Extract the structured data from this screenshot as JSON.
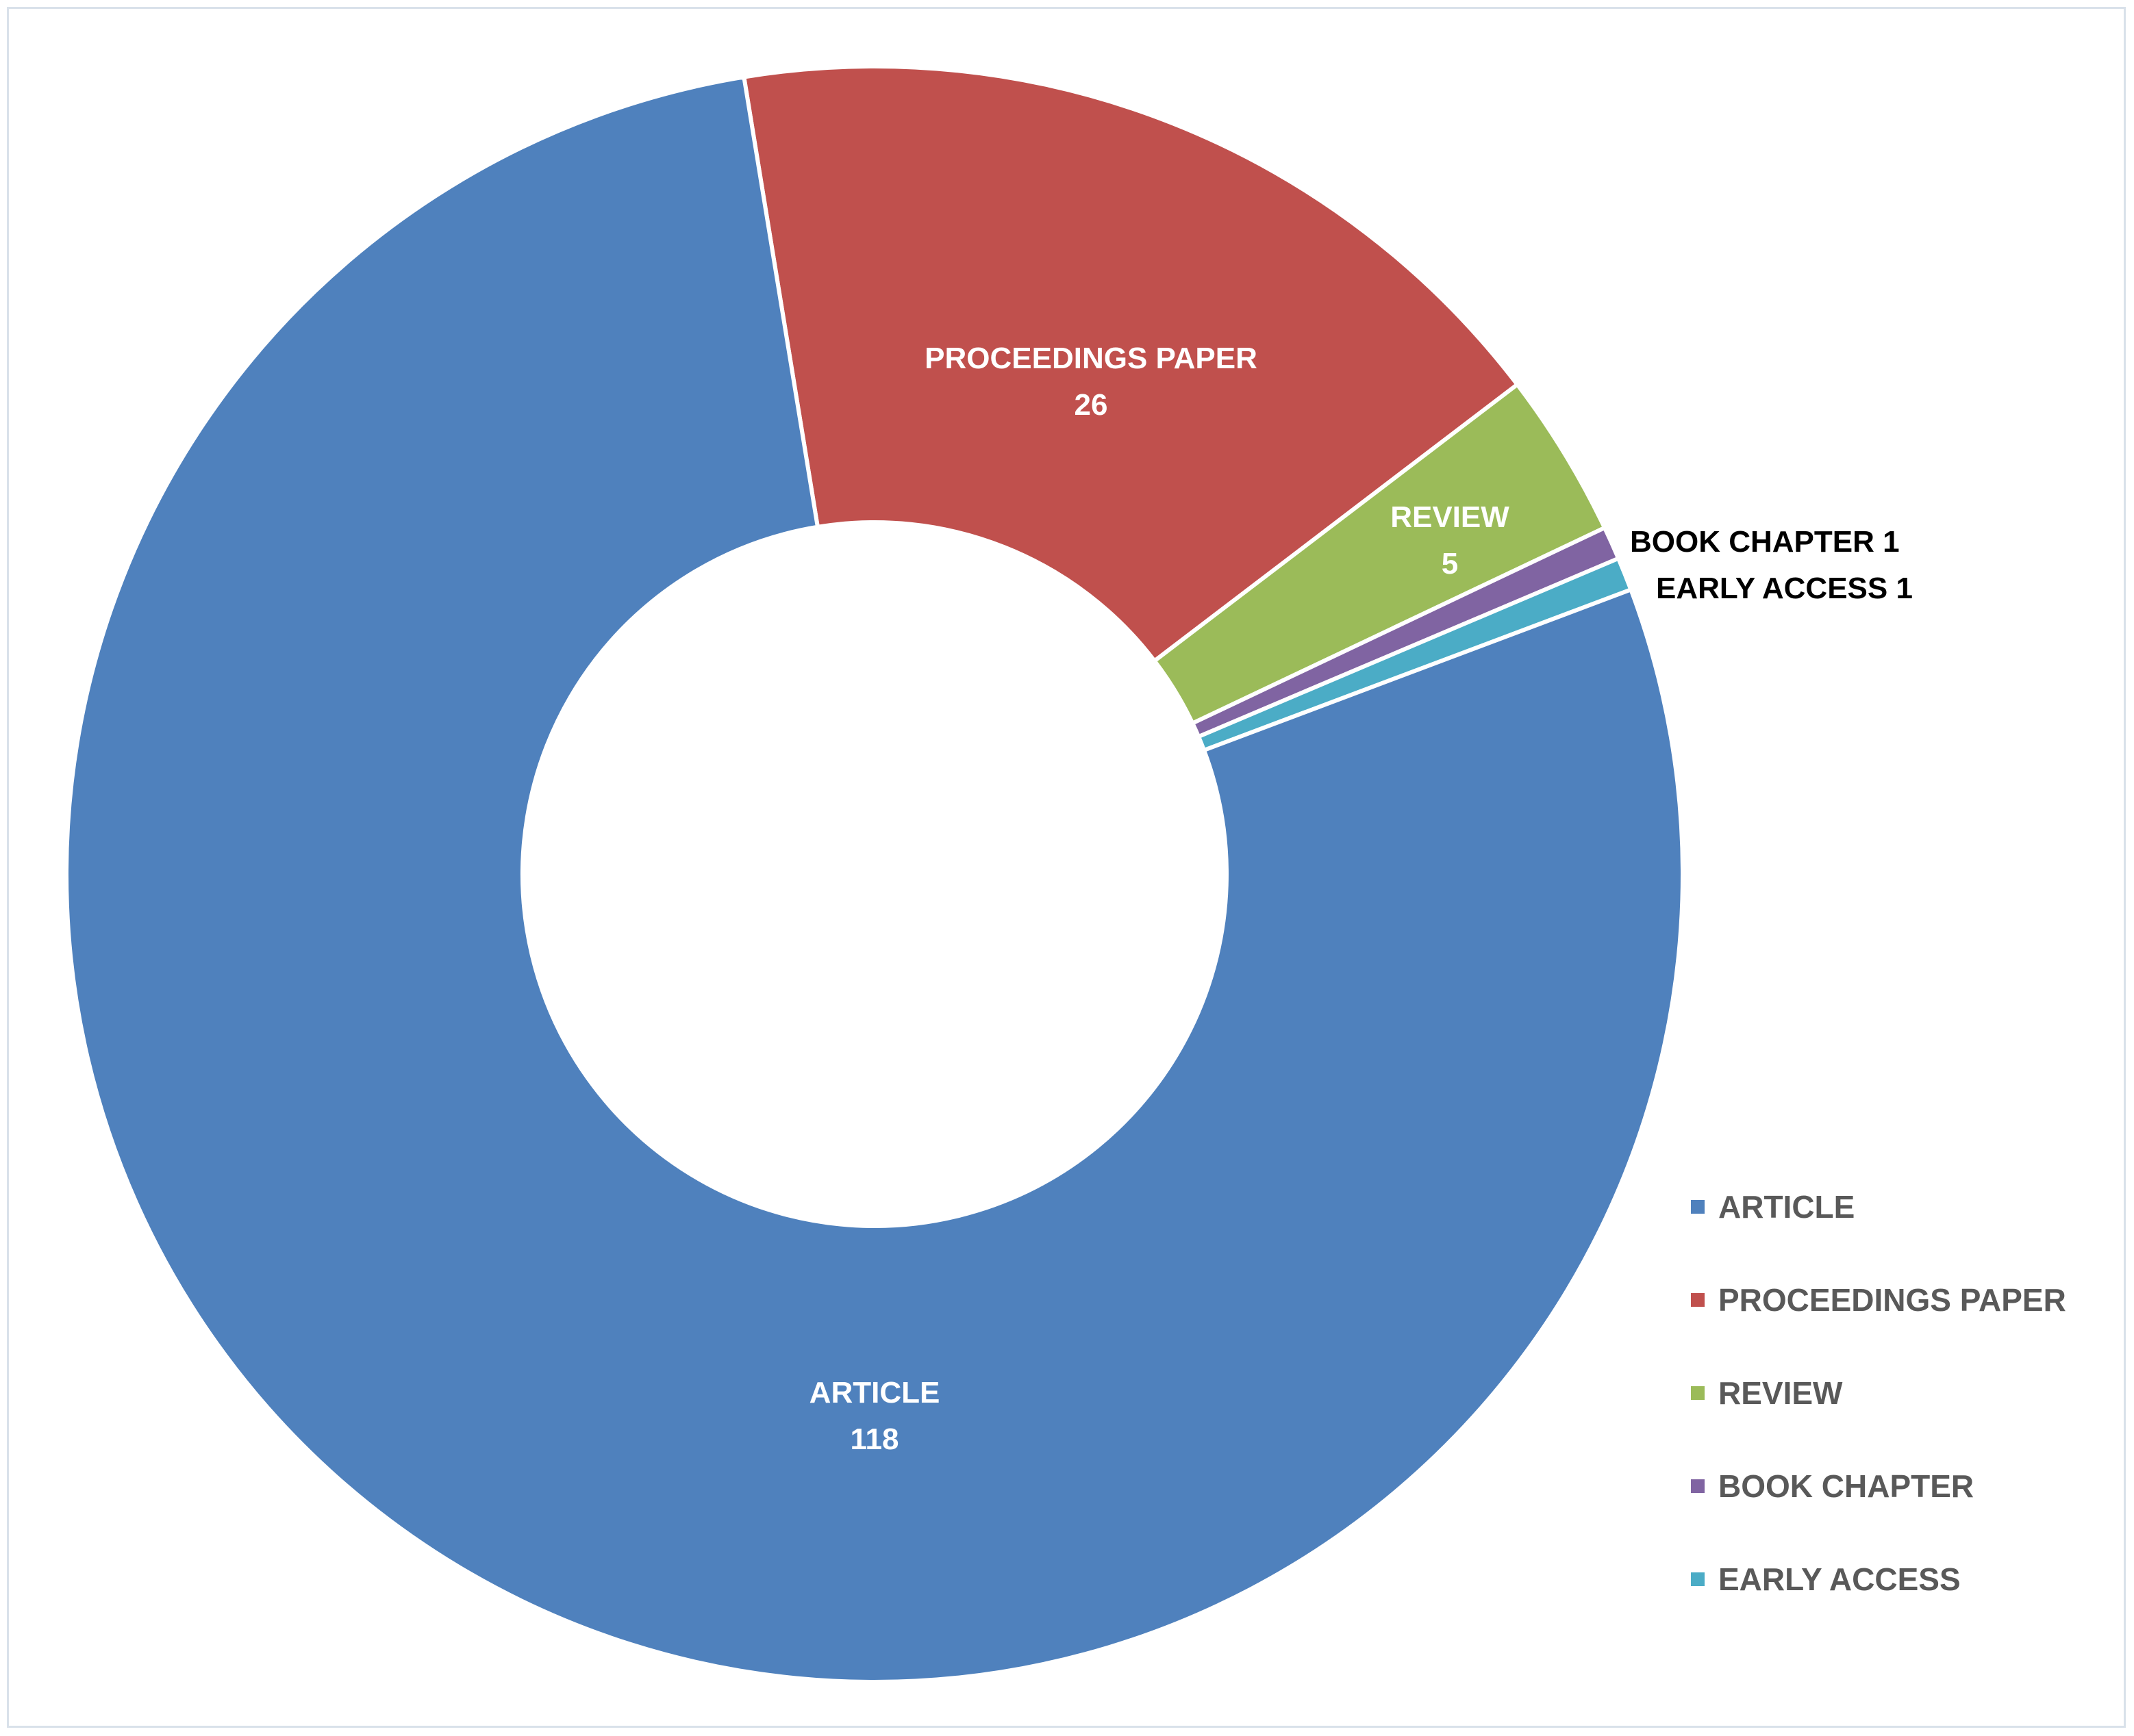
{
  "chart_data": {
    "type": "pie",
    "variant": "donut",
    "categories": [
      "ARTICLE",
      "PROCEEDINGS PAPER",
      "REVIEW",
      "BOOK CHAPTER",
      "EARLY ACCESS"
    ],
    "values": [
      118,
      26,
      5,
      1,
      1
    ],
    "colors": [
      "#4f81bd",
      "#c0504d",
      "#9bbb59",
      "#8064a2",
      "#4bacc6"
    ],
    "data_labels": [
      {
        "category": "ARTICLE",
        "value": "118",
        "inside": true
      },
      {
        "category": "PROCEEDINGS PAPER",
        "value": "26",
        "inside": true
      },
      {
        "category": "REVIEW",
        "value": "5",
        "inside": true
      },
      {
        "category": "BOOK CHAPTER",
        "value": "1",
        "inside": false
      },
      {
        "category": "EARLY ACCESS",
        "value": "1",
        "inside": false
      }
    ],
    "legend": {
      "position": "right",
      "items": [
        "ARTICLE",
        "PROCEEDINGS PAPER",
        "REVIEW",
        "BOOK CHAPTER",
        "EARLY ACCESS"
      ]
    },
    "title": ""
  }
}
